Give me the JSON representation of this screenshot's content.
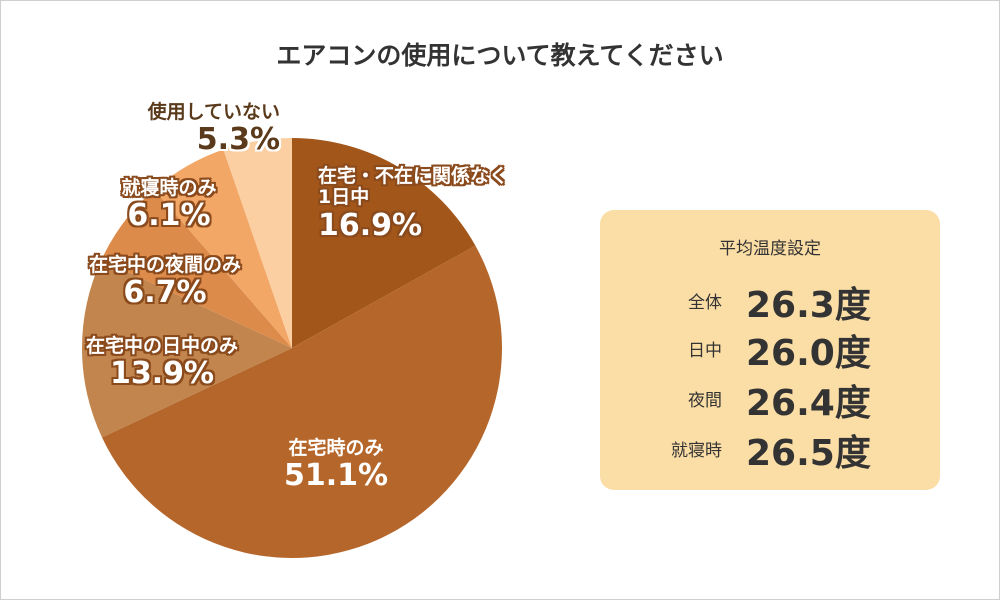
{
  "title": "エアコンの使用について教えてください",
  "chart_data": {
    "type": "pie",
    "slices": [
      {
        "label": "在宅・不在に関係なく",
        "label2": "1日中",
        "value": 16.9,
        "pct_text": "16.9%",
        "color": "#a3561a"
      },
      {
        "label": "在宅時のみ",
        "label2": "",
        "value": 51.1,
        "pct_text": "51.1%",
        "color": "#b5672b"
      },
      {
        "label": "在宅中の日中のみ",
        "label2": "",
        "value": 13.9,
        "pct_text": "13.9%",
        "color": "#c1854d"
      },
      {
        "label": "在宅中の夜間のみ",
        "label2": "",
        "value": 6.7,
        "pct_text": "6.7%",
        "color": "#dd8b4b"
      },
      {
        "label": "就寝時のみ",
        "label2": "",
        "value": 6.1,
        "pct_text": "6.1%",
        "color": "#f3a766"
      },
      {
        "label": "使用していない",
        "label2": "",
        "value": 5.3,
        "pct_text": "5.3%",
        "color": "#fbcfa2"
      }
    ]
  },
  "panel": {
    "title": "平均温度設定",
    "rows": [
      {
        "label": "全体",
        "value": "26.3度"
      },
      {
        "label": "日中",
        "value": "26.0度"
      },
      {
        "label": "夜間",
        "value": "26.4度"
      },
      {
        "label": "就寝時",
        "value": "26.5度"
      }
    ]
  },
  "colors": {
    "panel_bg": "#fbdda6",
    "text": "#333333",
    "label_outline": "#8a4a1c"
  }
}
